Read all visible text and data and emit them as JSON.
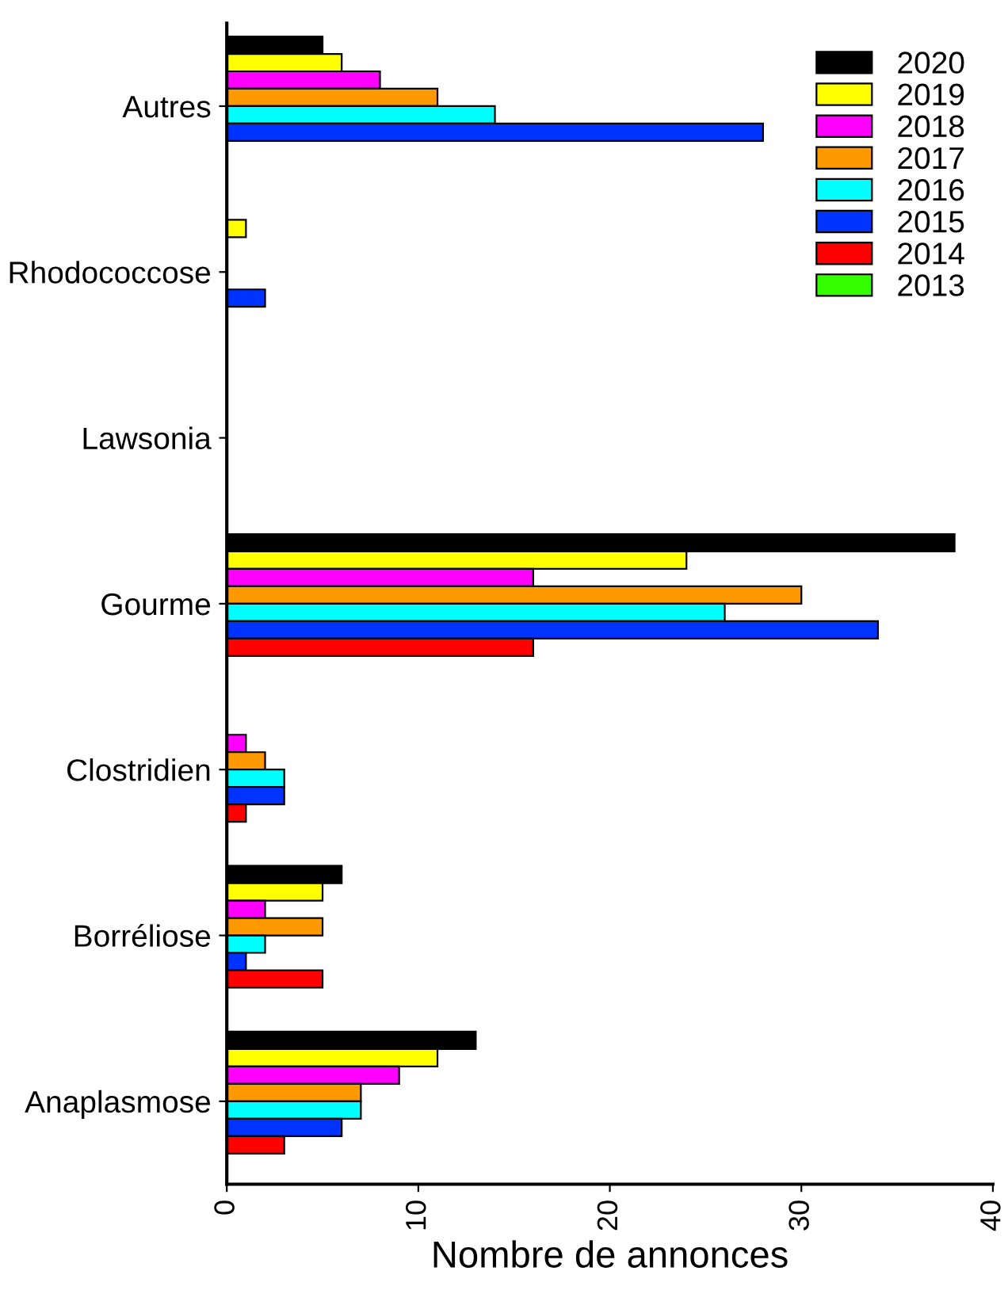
{
  "chart_data": {
    "type": "bar",
    "orientation": "horizontal",
    "xlabel": "Nombre de annonces",
    "categories": [
      "Autres",
      "Rhodococcose",
      "Lawsonia",
      "Gourme",
      "Clostridien",
      "Borréliose",
      "Anaplasmose"
    ],
    "series": [
      {
        "name": "2020",
        "color": "#000000",
        "values": [
          5,
          null,
          null,
          38,
          null,
          6,
          13
        ]
      },
      {
        "name": "2019",
        "color": "#ffff00",
        "values": [
          6,
          1,
          null,
          24,
          null,
          5,
          11
        ]
      },
      {
        "name": "2018",
        "color": "#ff00ff",
        "values": [
          8,
          null,
          null,
          16,
          1,
          2,
          9
        ]
      },
      {
        "name": "2017",
        "color": "#ff9900",
        "values": [
          11,
          null,
          null,
          30,
          2,
          5,
          7
        ]
      },
      {
        "name": "2016",
        "color": "#00ffff",
        "values": [
          14,
          null,
          null,
          26,
          3,
          2,
          7
        ]
      },
      {
        "name": "2015",
        "color": "#0033ff",
        "values": [
          28,
          2,
          null,
          34,
          3,
          1,
          6
        ]
      },
      {
        "name": "2014",
        "color": "#ff0000",
        "values": [
          null,
          null,
          null,
          16,
          1,
          5,
          3
        ]
      },
      {
        "name": "2013",
        "color": "#33ff00",
        "values": [
          null,
          null,
          null,
          null,
          null,
          null,
          null
        ]
      }
    ],
    "xlim": [
      0,
      40
    ],
    "xticks": [
      0,
      10,
      20,
      30,
      40
    ],
    "legend": "top right",
    "grid": false
  }
}
